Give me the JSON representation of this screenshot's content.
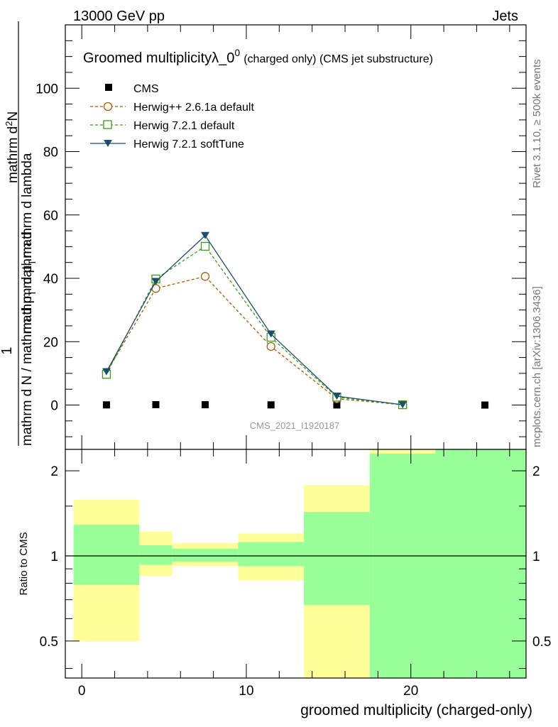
{
  "header": {
    "left": "13000 GeV pp",
    "right": "Jets"
  },
  "side_labels": {
    "rivet": "Rivet 3.1.10, ≥ 500k events",
    "mcplots": "mcplots.cern.ch [arXiv:1306.3436]"
  },
  "watermark": "CMS_2021_I1920187",
  "ratio_ylabel": "Ratio to CMS",
  "colors": {
    "cms": "#000000",
    "herwigpp": "#b05a00",
    "herwig_default": "#3a9a1a",
    "herwig_soft": "#1c4e6e",
    "band_yellow": "#ffff99",
    "band_green": "#99ff99"
  },
  "chart_data": [
    {
      "type": "line",
      "title": "Groomed multiplicityλ_0⁰ (charged only) (CMS jet substructure)",
      "title_main": "Groomed multiplicityλ_0",
      "title_sup": "0",
      "title_suffix": "(charged only) (CMS jet substructure)",
      "ylabel": "1 / mathrm d N / mathrm d p_T mathrm d^2N / mathrm d p_T mathrm d lambda",
      "ylabel_lines": [
        "1",
        "mathrm d N / mathrm d p",
        "T",
        "mathrm d",
        "2",
        "N",
        "mathrm d p",
        "T",
        "mathrm d lambda"
      ],
      "xlabel": "",
      "xlim": [
        -1,
        27
      ],
      "ylim": [
        -14,
        120
      ],
      "yticks": [
        0,
        20,
        40,
        60,
        80,
        100
      ],
      "ytick_labels": [
        "0",
        "20",
        "40",
        "60",
        "80",
        "100"
      ],
      "series": [
        {
          "name": "CMS",
          "legend": "CMS",
          "marker": "square-filled",
          "x": [
            1.5,
            4.5,
            7.5,
            11.5,
            15.5,
            19.5,
            24.5
          ],
          "y": [
            0.05,
            0.12,
            0.1,
            0.05,
            0.03,
            0.01,
            0.002
          ]
        },
        {
          "name": "Herwig++ 2.6.1a default",
          "legend": "Herwig++ 2.6.1a default",
          "marker": "circle-open",
          "dash": "dashed",
          "x": [
            1.5,
            4.5,
            7.5,
            11.5,
            15.5,
            19.5
          ],
          "y": [
            10.3,
            36.8,
            40.6,
            18.5,
            2.0,
            0.1
          ]
        },
        {
          "name": "Herwig 7.2.1 default",
          "legend": "Herwig 7.2.1 default",
          "marker": "square-open",
          "dash": "dashed",
          "x": [
            1.5,
            4.5,
            7.5,
            11.5,
            15.5,
            19.5
          ],
          "y": [
            9.7,
            39.8,
            50.1,
            21.4,
            2.5,
            0.1
          ]
        },
        {
          "name": "Herwig 7.2.1 softTune",
          "legend": "Herwig 7.2.1 softTune",
          "marker": "triangle-down-filled",
          "dash": "solid",
          "x": [
            1.5,
            4.5,
            7.5,
            11.5,
            15.5,
            19.5
          ],
          "y": [
            10.5,
            39.0,
            53.5,
            22.4,
            2.8,
            0.1
          ]
        }
      ]
    },
    {
      "type": "area",
      "title": "",
      "ylabel": "Ratio to CMS",
      "xlabel": "groomed multiplicity (charged-only)",
      "xlim": [
        -1,
        27
      ],
      "ylim": [
        0.37,
        2.38
      ],
      "yscale": "log",
      "xticks": [
        0,
        10,
        20
      ],
      "xtick_labels": [
        "0",
        "10",
        "20"
      ],
      "yticks": [
        0.5,
        1,
        2
      ],
      "ytick_labels": [
        "0.5",
        "1",
        "2"
      ],
      "reference_line": 1,
      "bands": [
        {
          "x0": -0.5,
          "x1": 3.5,
          "yellow": [
            0.5,
            1.58
          ],
          "green": [
            0.79,
            1.29
          ]
        },
        {
          "x0": 3.5,
          "x1": 5.5,
          "yellow": [
            0.85,
            1.22
          ],
          "green": [
            0.93,
            1.09
          ]
        },
        {
          "x0": 5.5,
          "x1": 9.5,
          "yellow": [
            0.92,
            1.11
          ],
          "green": [
            0.955,
            1.06
          ]
        },
        {
          "x0": 9.5,
          "x1": 13.5,
          "yellow": [
            0.82,
            1.2
          ],
          "green": [
            0.92,
            1.12
          ]
        },
        {
          "x0": 13.5,
          "x1": 17.5,
          "yellow": [
            0.3,
            1.78
          ],
          "green": [
            0.67,
            1.43
          ]
        },
        {
          "x0": 17.5,
          "x1": 21.5,
          "yellow": [
            0.3,
            2.5
          ],
          "green": [
            0.3,
            2.3
          ]
        },
        {
          "x0": 21.5,
          "x1": 27.5,
          "yellow": [
            0.3,
            2.5
          ],
          "green": [
            0.3,
            2.5
          ]
        }
      ]
    }
  ]
}
